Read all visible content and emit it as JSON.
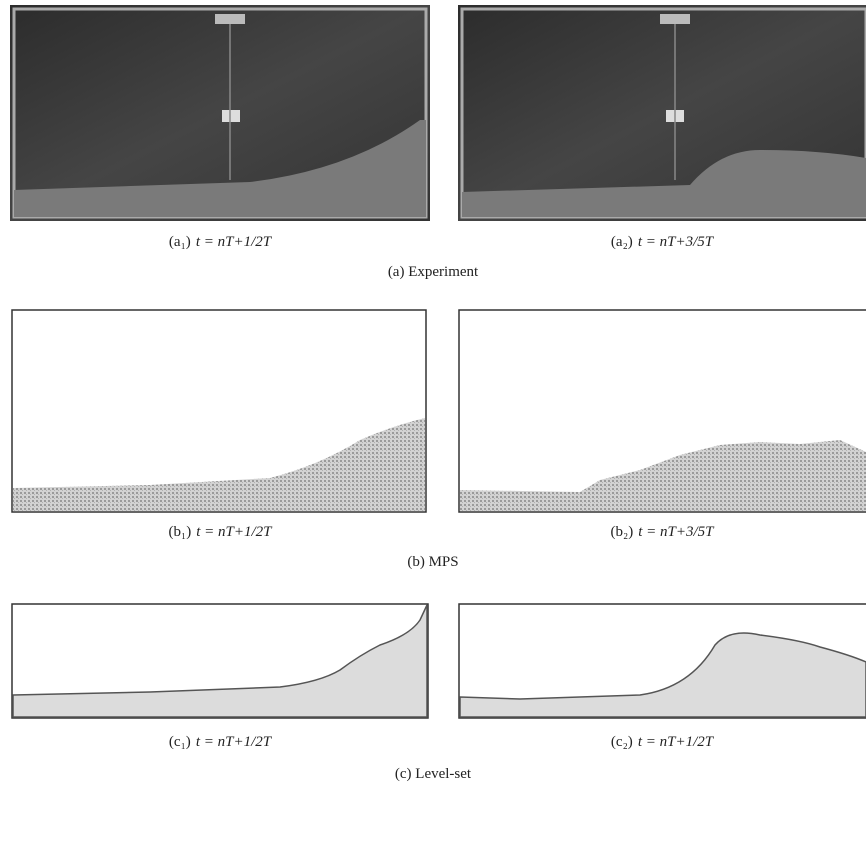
{
  "panels": [
    {
      "group_caption": "(a) Experiment",
      "items": [
        {
          "label": "(a₁)",
          "formula": "t = nT+1/2T"
        },
        {
          "label": "(a₂)",
          "formula": "t = nT+3/5T"
        }
      ]
    },
    {
      "group_caption": "(b) MPS",
      "items": [
        {
          "label": "(b₁)",
          "formula": "t = nT+1/2T"
        },
        {
          "label": "(b₂)",
          "formula": "t = nT+3/5T"
        }
      ]
    },
    {
      "group_caption": "(c) Level-set",
      "items": [
        {
          "label": "(c₁)",
          "formula": "t = nT+1/2T"
        },
        {
          "label": "(c₂)",
          "formula": "t = nT+1/2T"
        }
      ]
    }
  ]
}
